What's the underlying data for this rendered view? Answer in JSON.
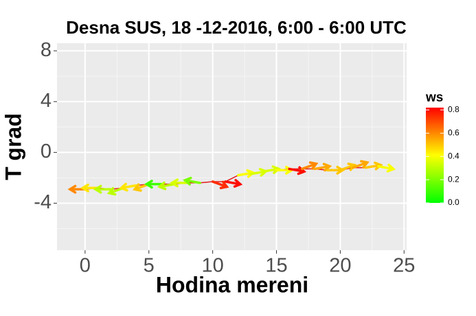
{
  "chart_data": {
    "type": "line",
    "title": "Desna SUS, 18 -12-2016, 6:00 - 6:00 UTC",
    "x_label": "Hodina mereni",
    "y_label": "T grad",
    "x": [
      0,
      1,
      2,
      3,
      4,
      5,
      6,
      7,
      8,
      9,
      10,
      11,
      12,
      13,
      14,
      15,
      16,
      17,
      18,
      19,
      20,
      21,
      22,
      23
    ],
    "values": [
      -2.9,
      -2.8,
      -2.9,
      -2.8,
      -2.6,
      -2.5,
      -2.5,
      -2.5,
      -2.4,
      -2.4,
      -2.3,
      -2.3,
      -1.8,
      -1.7,
      -1.5,
      -1.4,
      -1.3,
      -1.3,
      -1.3,
      -1.4,
      -1.4,
      -1.2,
      -1.2,
      -1.1
    ],
    "ws": [
      0.6,
      0.45,
      0.3,
      0.3,
      0.45,
      0.5,
      0.1,
      0.3,
      0.35,
      0.2,
      0.75,
      0.8,
      0.4,
      0.35,
      0.35,
      0.4,
      0.8,
      0.6,
      0.55,
      0.5,
      0.5,
      0.55,
      0.5,
      0.4
    ],
    "wd": [
      180,
      180,
      180,
      200,
      190,
      200,
      180,
      190,
      180,
      170,
      340,
      350,
      10,
      10,
      10,
      0,
      350,
      20,
      10,
      0,
      20,
      20,
      10,
      350
    ],
    "line_color": "#e41a1c",
    "xlim": [
      -2.2,
      25.2
    ],
    "ylim": [
      -7.7,
      8.6
    ],
    "xticks": [
      0,
      5,
      10,
      15,
      20,
      25
    ],
    "yticks": [
      -4,
      0,
      4,
      8
    ],
    "legend_title": "ws",
    "color_scale": [
      "#00ff00",
      "#ffff00",
      "#ff0000"
    ],
    "ws_lim": [
      0,
      0.82
    ],
    "ws_ticks": [
      {
        "value": 0,
        "label": "0.0"
      },
      0.2,
      0.4,
      0.6,
      0.8
    ]
  }
}
